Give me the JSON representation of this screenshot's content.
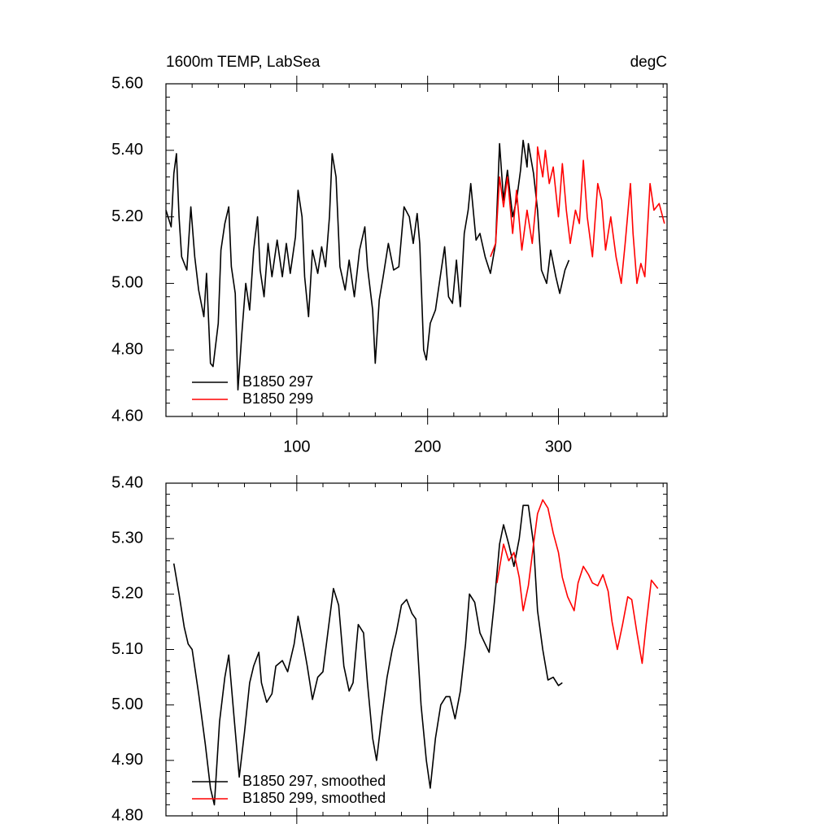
{
  "chart_data": [
    {
      "type": "line",
      "title": "1600m TEMP, LabSea",
      "units": "degC",
      "xlim": [
        0,
        383
      ],
      "xticks": [
        100,
        200,
        300
      ],
      "ylim": [
        4.6,
        5.6
      ],
      "yticks": [
        {
          "value": 4.6,
          "label": "4.60"
        },
        {
          "value": 4.8,
          "label": "4.80"
        },
        {
          "value": 5.0,
          "label": "5.00"
        },
        {
          "value": 5.2,
          "label": "5.20"
        },
        {
          "value": 5.4,
          "label": "5.40"
        },
        {
          "value": 5.6,
          "label": "5.60"
        }
      ],
      "legend": "lower left",
      "series": [
        {
          "name": "B1850 297",
          "color": "#000000",
          "x": [
            0,
            4,
            6,
            8,
            10,
            12,
            16,
            19,
            22,
            25,
            29,
            31,
            34,
            36,
            40,
            42,
            45,
            48,
            50,
            53,
            55,
            58,
            61,
            64,
            67,
            70,
            72,
            75,
            78,
            81,
            85,
            89,
            92,
            95,
            99,
            101,
            104,
            106,
            109,
            112,
            116,
            119,
            122,
            125,
            127,
            130,
            133,
            137,
            140,
            144,
            148,
            152,
            154,
            158,
            160,
            163,
            166,
            170,
            174,
            178,
            182,
            186,
            189,
            192,
            194,
            197,
            199,
            202,
            206,
            210,
            213,
            216,
            219,
            222,
            225,
            228,
            231,
            233,
            237,
            240,
            244,
            248,
            252,
            255,
            258,
            261,
            265,
            268,
            271,
            273,
            276,
            277,
            281,
            284,
            287,
            291,
            294,
            298,
            301,
            305,
            308
          ],
          "values": [
            5.22,
            5.17,
            5.33,
            5.39,
            5.2,
            5.08,
            5.04,
            5.23,
            5.08,
            4.98,
            4.9,
            5.03,
            4.76,
            4.75,
            4.88,
            5.1,
            5.18,
            5.23,
            5.05,
            4.97,
            4.68,
            4.85,
            5.0,
            4.92,
            5.1,
            5.2,
            5.04,
            4.96,
            5.12,
            5.02,
            5.13,
            5.02,
            5.12,
            5.03,
            5.14,
            5.28,
            5.2,
            5.02,
            4.9,
            5.1,
            5.03,
            5.11,
            5.05,
            5.2,
            5.39,
            5.32,
            5.05,
            4.98,
            5.07,
            4.96,
            5.1,
            5.17,
            5.05,
            4.92,
            4.76,
            4.95,
            5.02,
            5.12,
            5.04,
            5.05,
            5.23,
            5.2,
            5.12,
            5.21,
            5.12,
            4.8,
            4.77,
            4.88,
            4.92,
            5.03,
            5.11,
            4.96,
            4.94,
            5.07,
            4.93,
            5.15,
            5.22,
            5.3,
            5.13,
            5.15,
            5.08,
            5.03,
            5.12,
            5.42,
            5.25,
            5.34,
            5.2,
            5.25,
            5.34,
            5.43,
            5.35,
            5.42,
            5.33,
            5.22,
            5.04,
            5.0,
            5.1,
            5.02,
            4.97,
            5.04,
            5.07
          ]
        },
        {
          "name": "B1850 299",
          "color": "#ff0000",
          "x": [
            248,
            252,
            255,
            258,
            261,
            265,
            268,
            272,
            276,
            280,
            283,
            284,
            288,
            290,
            293,
            296,
            300,
            303,
            306,
            309,
            313,
            316,
            319,
            322,
            326,
            330,
            333,
            336,
            340,
            344,
            348,
            351,
            355,
            357,
            360,
            363,
            366,
            370,
            373,
            377,
            381
          ],
          "values": [
            5.08,
            5.12,
            5.32,
            5.23,
            5.32,
            5.15,
            5.28,
            5.1,
            5.22,
            5.12,
            5.25,
            5.41,
            5.32,
            5.4,
            5.3,
            5.35,
            5.2,
            5.36,
            5.22,
            5.12,
            5.22,
            5.18,
            5.37,
            5.2,
            5.08,
            5.3,
            5.25,
            5.1,
            5.2,
            5.08,
            5.0,
            5.12,
            5.3,
            5.15,
            5.0,
            5.06,
            5.02,
            5.3,
            5.22,
            5.24,
            5.18
          ]
        }
      ]
    },
    {
      "type": "line",
      "xlim": [
        0,
        383
      ],
      "xticks": [
        100,
        200,
        300
      ],
      "ylim": [
        4.8,
        5.4
      ],
      "yticks": [
        {
          "value": 4.8,
          "label": "4.80"
        },
        {
          "value": 4.9,
          "label": "4.90"
        },
        {
          "value": 5.0,
          "label": "5.00"
        },
        {
          "value": 5.1,
          "label": "5.10"
        },
        {
          "value": 5.2,
          "label": "5.20"
        },
        {
          "value": 5.3,
          "label": "5.30"
        },
        {
          "value": 5.4,
          "label": "5.40"
        }
      ],
      "legend": "lower left",
      "series": [
        {
          "name": "B1850 297, smoothed",
          "color": "#000000",
          "x": [
            6,
            10,
            14,
            17,
            20,
            25,
            30,
            34,
            37,
            41,
            45,
            48,
            52,
            56,
            60,
            64,
            67,
            71,
            73,
            77,
            81,
            84,
            89,
            93,
            98,
            101,
            105,
            108,
            112,
            116,
            120,
            124,
            128,
            132,
            136,
            140,
            143,
            147,
            151,
            154,
            158,
            161,
            165,
            169,
            173,
            176,
            180,
            184,
            188,
            191,
            195,
            199,
            202,
            206,
            210,
            214,
            217,
            221,
            225,
            229,
            232,
            236,
            240,
            244,
            247,
            251,
            255,
            258,
            262,
            266,
            270,
            273,
            277,
            281,
            284,
            288,
            292,
            296,
            300,
            303
          ],
          "values": [
            5.255,
            5.2,
            5.14,
            5.11,
            5.1,
            5.02,
            4.93,
            4.85,
            4.82,
            4.97,
            5.05,
            5.09,
            4.98,
            4.87,
            4.95,
            5.04,
            5.07,
            5.095,
            5.04,
            5.005,
            5.02,
            5.07,
            5.08,
            5.06,
            5.11,
            5.16,
            5.11,
            5.07,
            5.01,
            5.05,
            5.06,
            5.135,
            5.21,
            5.18,
            5.07,
            5.025,
            5.04,
            5.145,
            5.13,
            5.04,
            4.94,
            4.9,
            4.98,
            5.05,
            5.1,
            5.13,
            5.18,
            5.19,
            5.165,
            5.155,
            5.0,
            4.9,
            4.85,
            4.94,
            5.0,
            5.015,
            5.015,
            4.975,
            5.025,
            5.11,
            5.2,
            5.185,
            5.13,
            5.11,
            5.095,
            5.185,
            5.29,
            5.325,
            5.29,
            5.25,
            5.3,
            5.36,
            5.36,
            5.29,
            5.17,
            5.1,
            5.045,
            5.05,
            5.035,
            5.04
          ]
        },
        {
          "name": "B1850 299, smoothed",
          "color": "#ff0000",
          "x": [
            253,
            258,
            262,
            266,
            270,
            273,
            277,
            281,
            284,
            288,
            292,
            296,
            300,
            303,
            307,
            312,
            315,
            319,
            323,
            326,
            330,
            334,
            338,
            341,
            345,
            349,
            353,
            356,
            360,
            364,
            367,
            371,
            376
          ],
          "values": [
            5.22,
            5.29,
            5.26,
            5.275,
            5.23,
            5.17,
            5.215,
            5.29,
            5.345,
            5.37,
            5.355,
            5.31,
            5.275,
            5.23,
            5.195,
            5.17,
            5.22,
            5.25,
            5.235,
            5.22,
            5.215,
            5.235,
            5.205,
            5.15,
            5.1,
            5.145,
            5.195,
            5.19,
            5.13,
            5.075,
            5.145,
            5.225,
            5.21
          ]
        }
      ]
    }
  ]
}
